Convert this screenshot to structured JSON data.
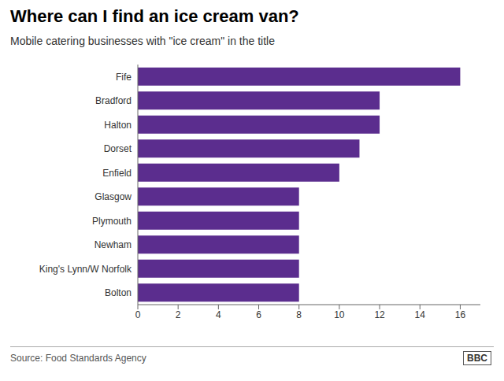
{
  "chart_data": {
    "type": "bar",
    "title": "Where can I find an ice cream van?",
    "subtitle": "Mobile catering businesses with \"ice cream\" in the title",
    "categories": [
      "Bolton",
      "King's Lynn/W Norfolk",
      "Newham",
      "Plymouth",
      "Glasgow",
      "Enfield",
      "Dorset",
      "Halton",
      "Bradford",
      "Fife"
    ],
    "values": [
      8,
      8,
      8,
      8,
      8,
      10,
      11,
      12,
      12,
      16
    ],
    "color": "#5b2d8e",
    "orientation": "horizontal",
    "xlim": [
      0,
      17
    ],
    "xticks": [
      0,
      2,
      4,
      6,
      8,
      10,
      12,
      14,
      16
    ],
    "grid": false,
    "annotations": [
      "Source: Food Standards Agency",
      "BBC"
    ]
  }
}
